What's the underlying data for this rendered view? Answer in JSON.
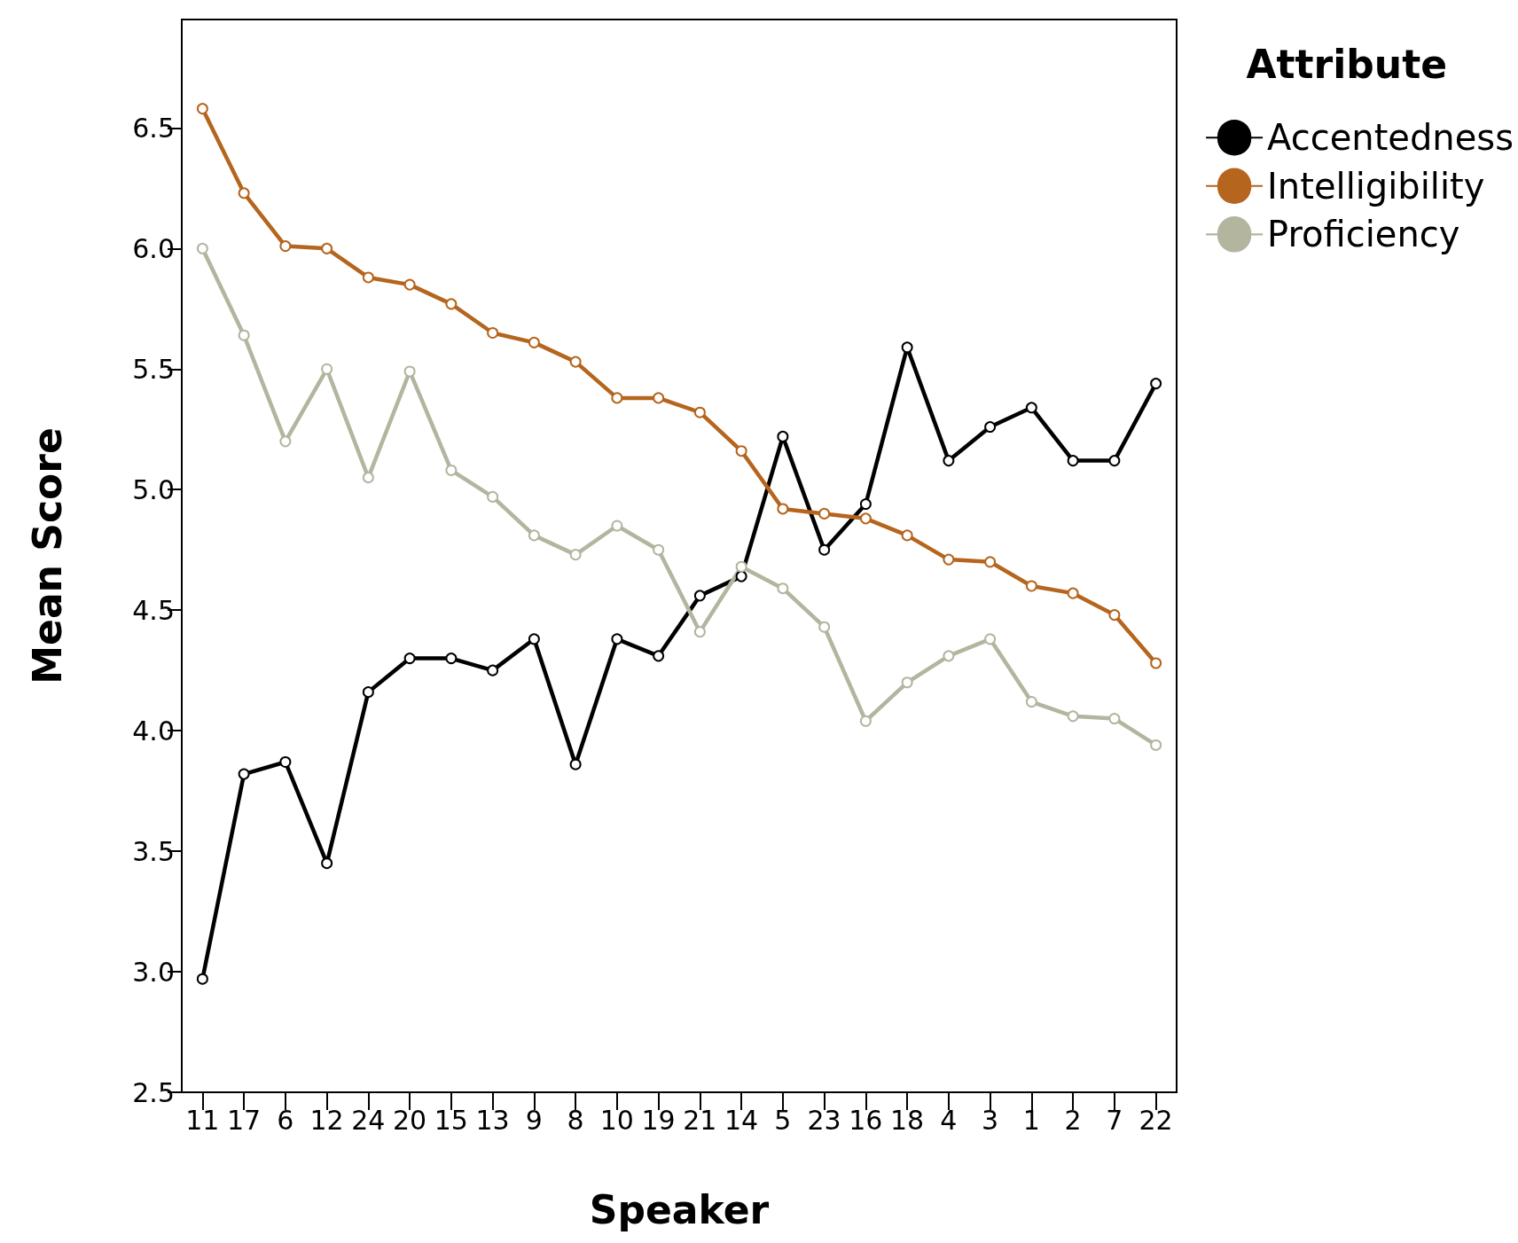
{
  "chart_data": {
    "type": "line",
    "xlabel": "Speaker",
    "ylabel": "Mean Score",
    "legend_title": "Attribute",
    "legend": "top right",
    "marker": "circle",
    "line_style": "solid",
    "grid": false,
    "categories": [
      "11",
      "17",
      "6",
      "12",
      "24",
      "20",
      "15",
      "13",
      "9",
      "8",
      "10",
      "19",
      "21",
      "14",
      "5",
      "23",
      "16",
      "18",
      "4",
      "3",
      "1",
      "2",
      "7",
      "22"
    ],
    "ylim": [
      2.5,
      6.95
    ],
    "yticks": [
      {
        "value": 2.5,
        "label": "2.5"
      },
      {
        "value": 3,
        "label": "3.0"
      },
      {
        "value": 3.5,
        "label": "3.5"
      },
      {
        "value": 4,
        "label": "4.0"
      },
      {
        "value": 4.5,
        "label": "4.5"
      },
      {
        "value": 5,
        "label": "5.0"
      },
      {
        "value": 5.5,
        "label": "5.5"
      },
      {
        "value": 6,
        "label": "6.0"
      },
      {
        "value": 6.5,
        "label": "6.5"
      }
    ],
    "series": [
      {
        "name": "Accentedness",
        "color": "#000000",
        "values": [
          2.97,
          3.82,
          3.87,
          3.45,
          4.16,
          4.3,
          4.3,
          4.25,
          4.38,
          3.86,
          4.38,
          4.31,
          4.56,
          4.64,
          5.22,
          4.75,
          4.94,
          5.59,
          5.12,
          5.26,
          5.34,
          5.12,
          5.12,
          5.44
        ]
      },
      {
        "name": "Intelligibility",
        "color": "#b5651d",
        "values": [
          6.58,
          6.23,
          6.01,
          6.0,
          5.88,
          5.85,
          5.77,
          5.65,
          5.61,
          5.53,
          5.38,
          5.38,
          5.32,
          5.16,
          4.92,
          4.9,
          4.88,
          4.81,
          4.71,
          4.7,
          4.6,
          4.57,
          4.48,
          4.28
        ]
      },
      {
        "name": "Proficiency",
        "color": "#b3b59f",
        "values": [
          6.0,
          5.64,
          5.2,
          5.5,
          5.05,
          5.49,
          5.08,
          4.97,
          4.81,
          4.73,
          4.85,
          4.75,
          4.41,
          4.68,
          4.59,
          4.43,
          4.04,
          4.2,
          4.31,
          4.38,
          4.12,
          4.06,
          4.05,
          3.94
        ]
      }
    ]
  }
}
